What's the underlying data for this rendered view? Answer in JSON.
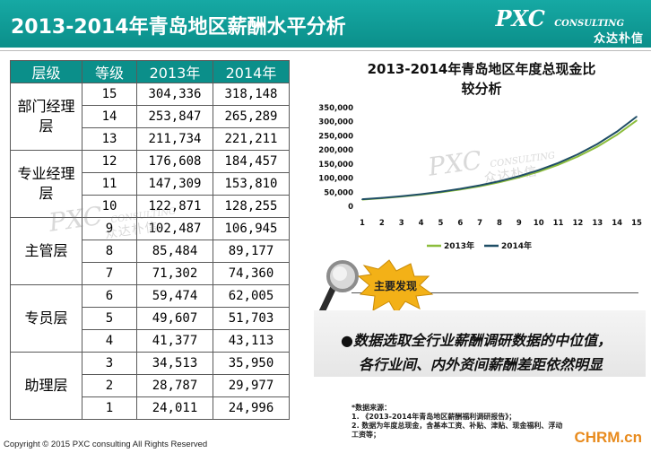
{
  "header": {
    "title": "2013-2014年青岛地区薪酬水平分析",
    "logo_main": "PXC",
    "logo_small": "CONSULTING",
    "logo_sub": "众达朴信"
  },
  "table": {
    "headers": [
      "层级",
      "等级",
      "2013年",
      "2014年"
    ],
    "groups": [
      {
        "name": "部门经理层",
        "name_line1": "部门经理",
        "name_line2": "层",
        "rows": [
          [
            "15",
            "304,336",
            "318,148"
          ],
          [
            "14",
            "253,847",
            "265,289"
          ],
          [
            "13",
            "211,734",
            "221,211"
          ]
        ]
      },
      {
        "name": "专业经理层",
        "name_line1": "专业经理",
        "name_line2": "层",
        "rows": [
          [
            "12",
            "176,608",
            "184,457"
          ],
          [
            "11",
            "147,309",
            "153,810"
          ],
          [
            "10",
            "122,871",
            "128,255"
          ]
        ]
      },
      {
        "name": "主管层",
        "name_line1": "主管层",
        "name_line2": "",
        "rows": [
          [
            "9",
            "102,487",
            "106,945"
          ],
          [
            "8",
            "85,484",
            "89,177"
          ],
          [
            "7",
            "71,302",
            "74,360"
          ]
        ]
      },
      {
        "name": "专员层",
        "name_line1": "专员层",
        "name_line2": "",
        "rows": [
          [
            "6",
            "59,474",
            "62,005"
          ],
          [
            "5",
            "49,607",
            "51,703"
          ],
          [
            "4",
            "41,377",
            "43,113"
          ]
        ]
      },
      {
        "name": "助理层",
        "name_line1": "助理层",
        "name_line2": "",
        "rows": [
          [
            "3",
            "34,513",
            "35,950"
          ],
          [
            "2",
            "28,787",
            "29,977"
          ],
          [
            "1",
            "24,011",
            "24,996"
          ]
        ]
      }
    ]
  },
  "chart_data": {
    "type": "line",
    "title": "2013-2014年青岛地区年度总现金比较分析",
    "title_line1": "2013-2014年青岛地区年度总现金比",
    "title_line2": "较分析",
    "x": [
      1,
      2,
      3,
      4,
      5,
      6,
      7,
      8,
      9,
      10,
      11,
      12,
      13,
      14,
      15
    ],
    "ylim": [
      0,
      350000
    ],
    "yticks": [
      "0",
      "50,000",
      "100,000",
      "150,000",
      "200,000",
      "250,000",
      "300,000",
      "350,000"
    ],
    "series": [
      {
        "name": "2013年",
        "color": "#8cbd3c",
        "values": [
          24011,
          28787,
          34513,
          41377,
          49607,
          59474,
          71302,
          85484,
          102487,
          122871,
          147309,
          176608,
          211734,
          253847,
          304336
        ]
      },
      {
        "name": "2014年",
        "color": "#1f4e66",
        "values": [
          24996,
          29977,
          35950,
          43113,
          51703,
          62005,
          74360,
          89177,
          106945,
          128255,
          153810,
          184457,
          221211,
          265289,
          318148
        ]
      }
    ],
    "legend_position": "bottom",
    "grid": false
  },
  "findings": {
    "badge": "主要发现",
    "bullet": "●",
    "line1": "数据选取全行业薪酬调研数据的中位值，",
    "line2": "各行业间、内外资间薪酬差距依然明显"
  },
  "notes": {
    "heading": "*数据来源：",
    "item1": "1.      《2013-2014年青岛地区薪酬福利调研报告》；",
    "item2": "2.      数据为年度总现金，含基本工资、补贴、津贴、现金福利、浮动",
    "item2b": "         工资等；"
  },
  "footer": "Copyright © 2015  PXC consulting All Rights Reserved",
  "watermark": {
    "main": "PXC",
    "small": "CONSULTING",
    "sub": "众达朴信"
  },
  "site_mark": "CHRM.cn"
}
